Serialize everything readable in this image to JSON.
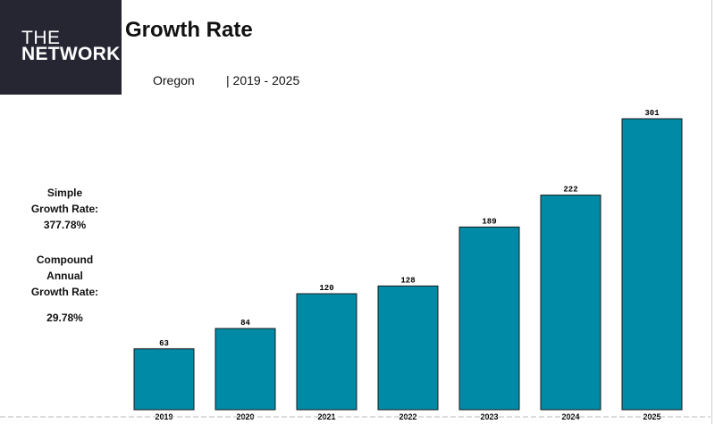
{
  "logo": {
    "line1": "THE",
    "line2": "NETWORK"
  },
  "header": {
    "title": "Growth Rate",
    "region": "Oregon",
    "period": "| 2019 - 2025"
  },
  "stats": {
    "simple_label_1": "Simple",
    "simple_label_2": "Growth Rate:",
    "simple_value": "377.78%",
    "compound_label_1": "Compound",
    "compound_label_2": "Annual",
    "compound_label_3": "Growth Rate:",
    "compound_value": "29.78%"
  },
  "colors": {
    "bar": "#008aa6",
    "bar_stroke": "#1a1a1a",
    "logo_bg": "#262633"
  },
  "chart_data": {
    "type": "bar",
    "title": "Growth Rate",
    "categories": [
      "2019",
      "2020",
      "2021",
      "2022",
      "2023",
      "2024",
      "2025"
    ],
    "values": [
      63,
      84,
      120,
      128,
      189,
      222,
      301
    ],
    "xlabel": "",
    "ylabel": "",
    "ylim": [
      0,
      301
    ],
    "grid": false,
    "legend": "none"
  }
}
